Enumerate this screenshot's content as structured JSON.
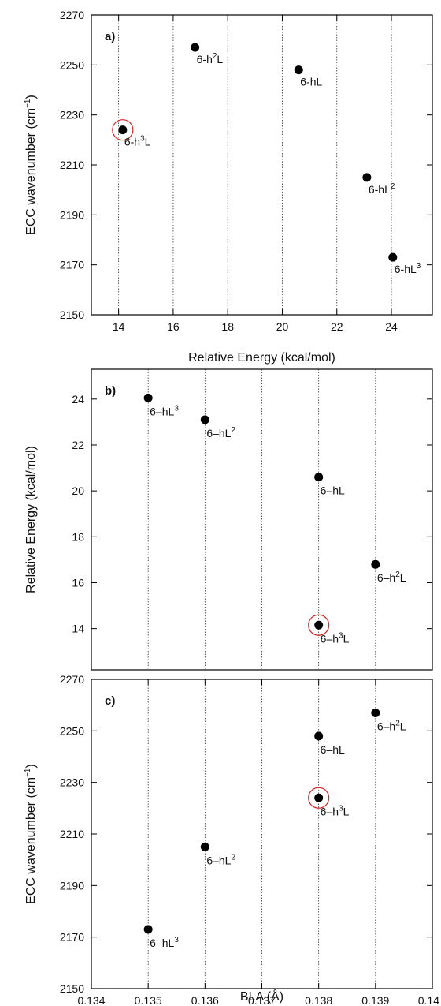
{
  "colors": {
    "point": "#000000",
    "highlight": "#d62728",
    "grid": "#333333",
    "frame": "#000000"
  },
  "chart_data": [
    {
      "type": "scatter",
      "panel_label": "a)",
      "xlabel": "Relative Energy (kcal/mol)",
      "ylabel": "ECC wavenumber (cm",
      "ylabel_sup": "−1",
      "ylabel_tail": ")",
      "xlim": [
        13,
        25.5
      ],
      "ylim": [
        2150,
        2270
      ],
      "xticks": [
        14,
        16,
        18,
        20,
        22,
        24
      ],
      "xtick_labels": [
        "14",
        "16",
        "18",
        "20",
        "22",
        "24"
      ],
      "yticks": [
        2150,
        2170,
        2190,
        2210,
        2230,
        2250,
        2270
      ],
      "ytick_labels": [
        "2150",
        "2170",
        "2190",
        "2210",
        "2230",
        "2250",
        "2270"
      ],
      "grid": "vertical dotted",
      "points": [
        {
          "x": 16.8,
          "y": 2257,
          "label_base": "6-h",
          "label_sup": "2",
          "label_tail": "L",
          "highlight": false
        },
        {
          "x": 20.6,
          "y": 2248,
          "label_base": "6-hL",
          "label_sup": "",
          "label_tail": "",
          "highlight": false
        },
        {
          "x": 14.15,
          "y": 2224,
          "label_base": "6-h",
          "label_sup": "3",
          "label_tail": "L",
          "highlight": true
        },
        {
          "x": 23.1,
          "y": 2205,
          "label_base": "6-hL",
          "label_sup": "2",
          "label_tail": "",
          "highlight": false
        },
        {
          "x": 24.05,
          "y": 2173,
          "label_base": "6-hL",
          "label_sup": "3",
          "label_tail": "",
          "highlight": false
        }
      ]
    },
    {
      "type": "scatter",
      "panel_label": "b)",
      "xlabel": "",
      "ylabel": "Relative Energy (kcal/mol)",
      "ylabel_sup": "",
      "ylabel_tail": "",
      "xlim": [
        0.134,
        0.14
      ],
      "ylim": [
        12.2,
        25.3
      ],
      "xticks": [],
      "xtick_labels": [],
      "yticks": [
        14,
        16,
        18,
        20,
        22,
        24
      ],
      "ytick_labels": [
        "14",
        "16",
        "18",
        "20",
        "22",
        "24"
      ],
      "grid": "vertical dotted",
      "gridx": [
        0.135,
        0.136,
        0.137,
        0.138,
        0.139
      ],
      "points": [
        {
          "x": 0.135,
          "y": 24.05,
          "label_base": "6–hL",
          "label_sup": "3",
          "label_tail": "",
          "highlight": false
        },
        {
          "x": 0.136,
          "y": 23.1,
          "label_base": "6–hL",
          "label_sup": "2",
          "label_tail": "",
          "highlight": false
        },
        {
          "x": 0.138,
          "y": 20.6,
          "label_base": "6–hL",
          "label_sup": "",
          "label_tail": "",
          "highlight": false
        },
        {
          "x": 0.139,
          "y": 16.8,
          "label_base": "6–h",
          "label_sup": "2",
          "label_tail": "L",
          "highlight": false
        },
        {
          "x": 0.138,
          "y": 14.15,
          "label_base": "6–h",
          "label_sup": "3",
          "label_tail": "L",
          "highlight": true
        }
      ]
    },
    {
      "type": "scatter",
      "panel_label": "c)",
      "xlabel": "BLA (Å)",
      "ylabel": "ECC wavenumber (cm",
      "ylabel_sup": "−1",
      "ylabel_tail": ")",
      "xlim": [
        0.134,
        0.14
      ],
      "ylim": [
        2150,
        2270
      ],
      "xticks": [
        0.134,
        0.135,
        0.136,
        0.137,
        0.138,
        0.139,
        0.14
      ],
      "xtick_labels": [
        "0.134",
        "0.135",
        "0.136",
        "0.137",
        "0.138",
        "0.139",
        "0.14"
      ],
      "yticks": [
        2150,
        2170,
        2190,
        2210,
        2230,
        2250,
        2270
      ],
      "ytick_labels": [
        "2150",
        "2170",
        "2190",
        "2210",
        "2230",
        "2250",
        "2270"
      ],
      "grid": "vertical dotted",
      "gridx": [
        0.135,
        0.136,
        0.137,
        0.138,
        0.139
      ],
      "points": [
        {
          "x": 0.139,
          "y": 2257,
          "label_base": "6–h",
          "label_sup": "2",
          "label_tail": "L",
          "highlight": false
        },
        {
          "x": 0.138,
          "y": 2248,
          "label_base": "6–hL",
          "label_sup": "",
          "label_tail": "",
          "highlight": false
        },
        {
          "x": 0.138,
          "y": 2224,
          "label_base": "6–h",
          "label_sup": "3",
          "label_tail": "L",
          "highlight": true
        },
        {
          "x": 0.136,
          "y": 2205,
          "label_base": "6–hL",
          "label_sup": "2",
          "label_tail": "",
          "highlight": false
        },
        {
          "x": 0.135,
          "y": 2173,
          "label_base": "6–hL",
          "label_sup": "3",
          "label_tail": "",
          "highlight": false
        }
      ]
    }
  ]
}
